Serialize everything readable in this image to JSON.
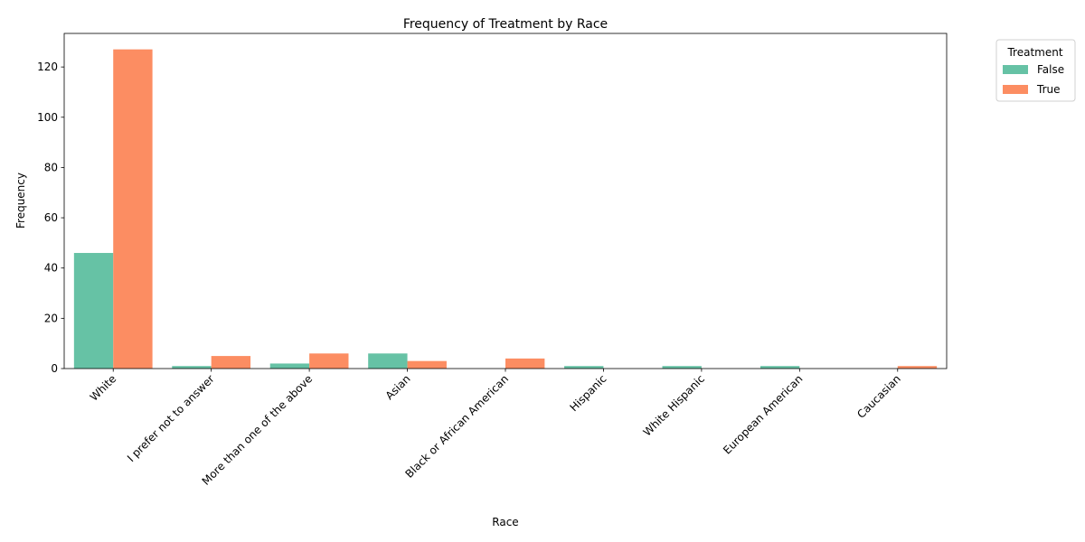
{
  "chart_data": {
    "type": "bar",
    "title": "Frequency of Treatment by Race",
    "xlabel": "Race",
    "ylabel": "Frequency",
    "categories": [
      "White",
      "I prefer not to answer",
      "More than one of the above",
      "Asian",
      "Black or African American",
      "Hispanic",
      "White Hispanic",
      "European American",
      "Caucasian"
    ],
    "series": [
      {
        "name": "False",
        "color": "#66c2a5",
        "values": [
          46,
          1,
          2,
          6,
          0,
          1,
          1,
          1,
          0
        ]
      },
      {
        "name": "True",
        "color": "#fc8d62",
        "values": [
          127,
          5,
          6,
          3,
          4,
          0,
          0,
          0,
          1
        ]
      }
    ],
    "ylim": [
      0,
      133.35
    ],
    "yticks": [
      0,
      20,
      40,
      60,
      80,
      100,
      120
    ],
    "grid": false,
    "legend": {
      "title": "Treatment",
      "placement": "outside-top-right"
    }
  }
}
